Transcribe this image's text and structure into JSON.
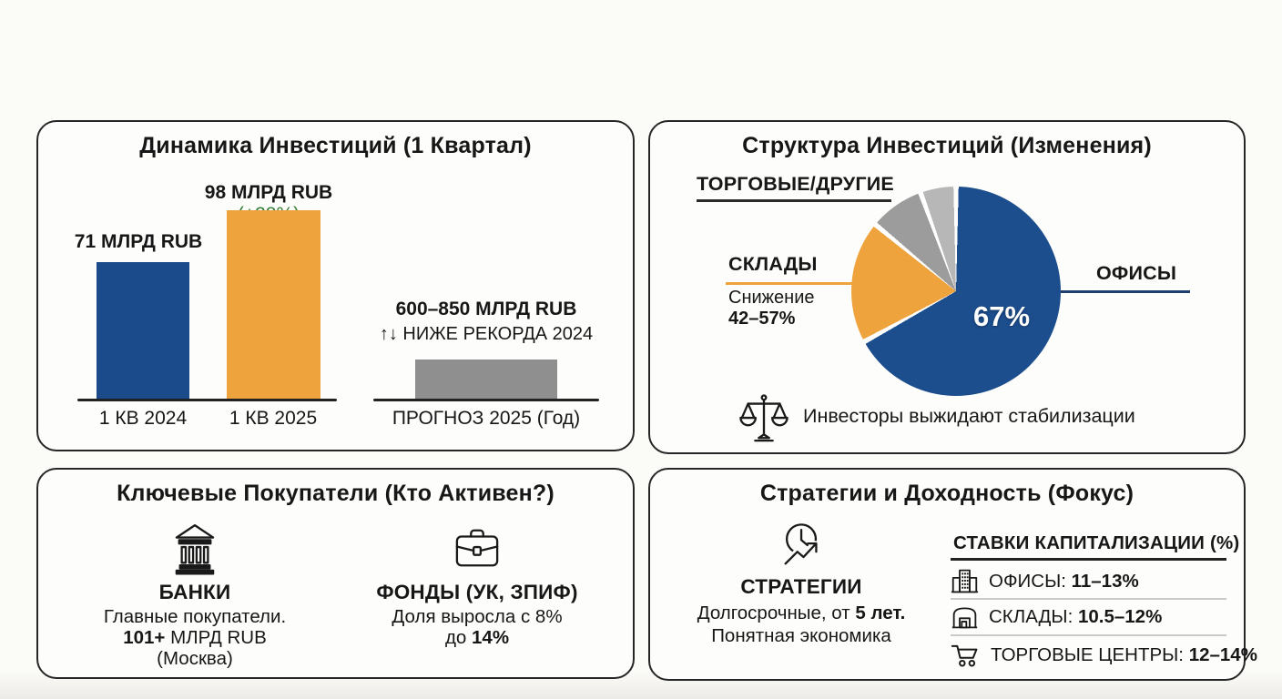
{
  "page": {
    "background": "#fbfbf8",
    "text_color": "#171717",
    "accent_blue": "#1b4b8a",
    "accent_orange": "#efa33d",
    "accent_gray": "#8f8f8f",
    "accent_green": "#2e7d33"
  },
  "dynamics": {
    "title": "Динамика Инвестиций (1 Квартал)",
    "bar_2024_label": "71 МЛРД RUB",
    "bar_2025_label": "98 МЛРД RUB",
    "bar_2025_badge": "(+38%)",
    "cat_2024": "1 КВ 2024",
    "cat_2025": "1 КВ 2025",
    "forecast_value": "600–850 МЛРД RUB",
    "forecast_arrows": "↑↓",
    "forecast_note": "НИЖЕ РЕКОРДА 2024",
    "forecast_cat": "ПРОГНОЗ 2025 (Год)"
  },
  "structure": {
    "title": "Структура Инвестиций (Изменения)",
    "label_offices": "ОФИСЫ",
    "offices_pct": "67%",
    "label_warehouses": "СКЛАДЫ",
    "warehouses_note1": "Снижение",
    "warehouses_note2": "42–57%",
    "label_retail_other": "ТОРГОВЫЕ/ДРУГИЕ",
    "caption": "Инвесторы выжидают стабилизации"
  },
  "buyers": {
    "title": "Ключевые Покупатели (Кто Активен?)",
    "banks": {
      "name": "БАНКИ",
      "line1": "Главные покупатели.",
      "line2_bold": "101+",
      "line2_rest": " МЛРД RUB",
      "line3": "(Москва)"
    },
    "funds": {
      "name": "ФОНДЫ (УК, ЗПИФ)",
      "line1": "Доля выросла с 8%",
      "line2_prefix": "до ",
      "line2_bold": "14%"
    }
  },
  "strategies": {
    "title": "Стратегии и Доходность (Фокус)",
    "left": {
      "name": "СТРАТЕГИИ",
      "line1_prefix": "Долгосрочные, от ",
      "line1_bold": "5 лет",
      "line1_suffix": ".",
      "line2": "Понятная экономика"
    },
    "rates": {
      "header": "СТАВКИ КАПИТАЛИЗАЦИИ (%)",
      "rows": [
        {
          "icon": "office-building-icon",
          "label": "ОФИСЫ: ",
          "value": "11–13%"
        },
        {
          "icon": "warehouse-icon",
          "label": "СКЛАДЫ: ",
          "value": "10.5–12%"
        },
        {
          "icon": "shopping-cart-icon",
          "label": "ТОРГОВЫЕ ЦЕНТРЫ: ",
          "value": "12–14%"
        }
      ]
    }
  },
  "chart_data": [
    {
      "type": "bar",
      "title": "Динамика Инвестиций (1 Квартал)",
      "categories": [
        "1 КВ 2024",
        "1 КВ 2025",
        "ПРОГНОЗ 2025 (Год)"
      ],
      "values": [
        71,
        98,
        null
      ],
      "unit": "МЛРД RUB",
      "bar_colors": [
        "#1b4b8a",
        "#efa33d",
        "#8f8f8f"
      ],
      "data_labels": [
        "71 МЛРД RUB",
        "98 МЛРД RUB (+38%)",
        "600–850 МЛРД RUB"
      ],
      "growth_pct_2025_vs_2024": 38,
      "forecast_range": [
        600,
        850
      ],
      "forecast_note": "НИЖЕ РЕКОРДА 2024",
      "ylim": [
        0,
        110
      ],
      "grid": false
    },
    {
      "type": "pie",
      "title": "Структура Инвестиций (Изменения)",
      "slices": [
        {
          "label": "ОФИСЫ",
          "value": 67,
          "color": "#1c4e8e"
        },
        {
          "label": "СКЛАДЫ",
          "value": 19,
          "color": "#efa33d",
          "note": "Снижение 42–57%"
        },
        {
          "label": "ТОРГОВЫЕ/ДРУГИЕ",
          "value": 8.5,
          "color": "#9c9c9c"
        },
        {
          "label": "ТОРГОВЫЕ/ДРУГИЕ (прочее)",
          "value": 5.5,
          "color": "#b7b7b7"
        }
      ],
      "inside_label": "67%",
      "legend_position": "callouts",
      "start_angle_deg": 0,
      "direction": "clockwise"
    }
  ]
}
